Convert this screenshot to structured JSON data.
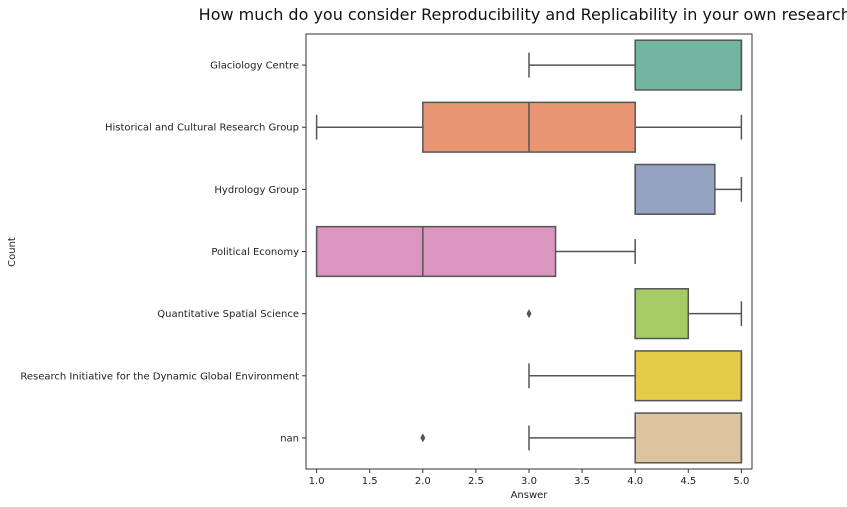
{
  "chart_data": {
    "type": "box",
    "orientation": "horizontal",
    "title": "How much do you consider Reproducibility and Replicability in your own research?",
    "xlabel": "Answer",
    "ylabel": "Count",
    "xlim": [
      0.9,
      5.1
    ],
    "xticks": [
      "1.0",
      "1.5",
      "2.0",
      "2.5",
      "3.0",
      "3.5",
      "4.0",
      "4.5",
      "5.0"
    ],
    "grid": false,
    "categories": [
      "Glaciology Centre",
      "Historical and Cultural Research Group",
      "Hydrology Group",
      "Political Economy",
      "Quantitative Spatial Science",
      "Research Initiative for the Dynamic Global Environment",
      "nan"
    ],
    "boxes": [
      {
        "whisker_low": 3,
        "q1": 4,
        "median": 5,
        "q3": 5,
        "whisker_high": 5,
        "outliers": [],
        "color": "#72b6a1"
      },
      {
        "whisker_low": 1,
        "q1": 2,
        "median": 3,
        "q3": 4,
        "whisker_high": 5,
        "outliers": [],
        "color": "#e99675"
      },
      {
        "whisker_low": 4,
        "q1": 4,
        "median": 4,
        "q3": 4.75,
        "whisker_high": 5,
        "outliers": [],
        "color": "#95a3c3"
      },
      {
        "whisker_low": 1,
        "q1": 1,
        "median": 2,
        "q3": 3.25,
        "whisker_high": 4,
        "outliers": [],
        "color": "#db96c0"
      },
      {
        "whisker_low": 4,
        "q1": 4,
        "median": 4,
        "q3": 4.5,
        "whisker_high": 5,
        "outliers": [
          3
        ],
        "color": "#a4cb64"
      },
      {
        "whisker_low": 3,
        "q1": 4,
        "median": 5,
        "q3": 5,
        "whisker_high": 5,
        "outliers": [],
        "color": "#e5cb48"
      },
      {
        "whisker_low": 3,
        "q1": 4,
        "median": 5,
        "q3": 5,
        "whisker_high": 5,
        "outliers": [
          2
        ],
        "color": "#dcc49e"
      }
    ]
  }
}
